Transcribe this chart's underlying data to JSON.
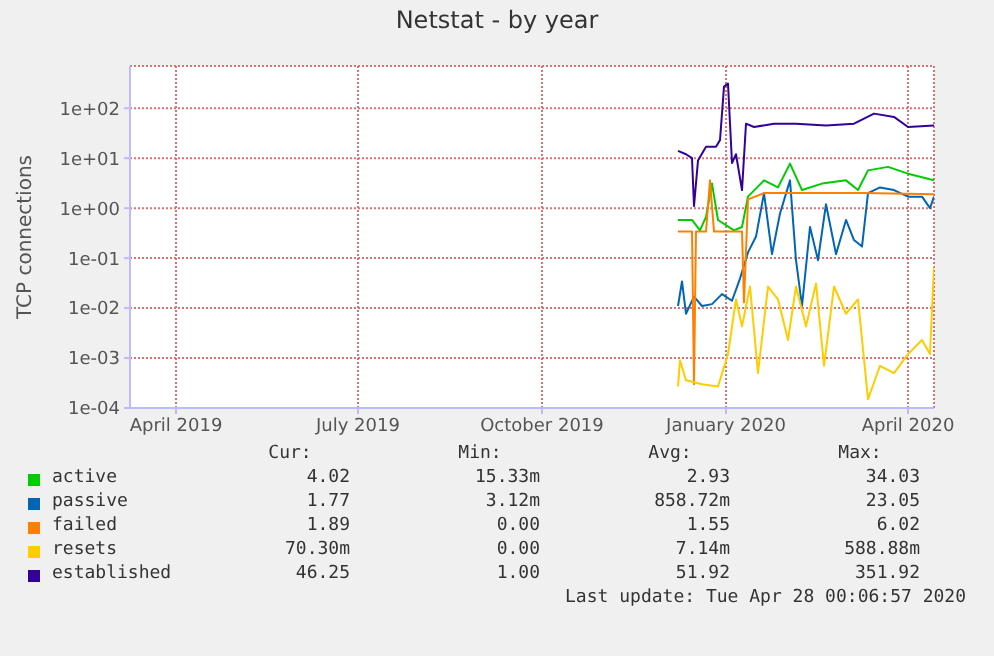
{
  "chart_data": {
    "type": "line",
    "title": "Netstat - by year",
    "ylabel": "TCP connections",
    "log": "y",
    "grid": true,
    "legend": "bottom",
    "marker": "none",
    "line_style": "solid",
    "xlim": [
      "2019-03-09",
      "2020-04-14"
    ],
    "xticks": [
      {
        "value": "2019-04-01",
        "label": "April 2019"
      },
      {
        "value": "2019-07-01",
        "label": "July 2019"
      },
      {
        "value": "2019-10-01",
        "label": "October 2019"
      },
      {
        "value": "2020-01-01",
        "label": "January 2020"
      },
      {
        "value": "2020-04-01",
        "label": "April 2020"
      }
    ],
    "ylim": [
      0.0001,
      700
    ],
    "yticks": [
      {
        "value": 0.0001,
        "label": "1e-04"
      },
      {
        "value": 0.001,
        "label": "1e-03"
      },
      {
        "value": 0.01,
        "label": "1e-02"
      },
      {
        "value": 0.1,
        "label": "1e-01"
      },
      {
        "value": 1,
        "label": "1e+00"
      },
      {
        "value": 10,
        "label": "1e+01"
      },
      {
        "value": 100,
        "label": "1e+02"
      }
    ],
    "series": [
      {
        "name": "active",
        "color": "#00cc00",
        "x": [
          "2019-12-08",
          "2019-12-15",
          "2019-12-19",
          "2019-12-22",
          "2019-12-25",
          "2019-12-28",
          "2020-01-05",
          "2020-01-09",
          "2020-01-12",
          "2020-01-20",
          "2020-01-27",
          "2020-02-02",
          "2020-02-08",
          "2020-02-18",
          "2020-03-01",
          "2020-03-07",
          "2020-03-12",
          "2020-03-22",
          "2020-04-01",
          "2020-04-14"
        ],
        "values": [
          0.58,
          0.58,
          0.36,
          0.67,
          3.1,
          0.58,
          0.36,
          0.42,
          1.7,
          3.6,
          2.6,
          7.8,
          2.3,
          3.1,
          3.6,
          2.3,
          5.7,
          6.7,
          4.9,
          3.6
        ]
      },
      {
        "name": "passive",
        "color": "#0066b3",
        "x": [
          "2019-12-08",
          "2019-12-10",
          "2019-12-12",
          "2019-12-16",
          "2019-12-20",
          "2019-12-25",
          "2019-12-30",
          "2020-01-04",
          "2020-01-08",
          "2020-01-12",
          "2020-01-16",
          "2020-01-20",
          "2020-01-24",
          "2020-01-28",
          "2020-02-02",
          "2020-02-05",
          "2020-02-08",
          "2020-02-12",
          "2020-02-16",
          "2020-02-20",
          "2020-02-25",
          "2020-03-01",
          "2020-03-05",
          "2020-03-09",
          "2020-03-12",
          "2020-03-18",
          "2020-03-25",
          "2020-04-01",
          "2020-04-08",
          "2020-04-12",
          "2020-04-14"
        ],
        "values": [
          0.011,
          0.034,
          0.0077,
          0.017,
          0.011,
          0.012,
          0.019,
          0.014,
          0.039,
          0.13,
          0.27,
          2,
          0.12,
          0.78,
          3.6,
          0.091,
          0.011,
          0.42,
          0.091,
          1.2,
          0.12,
          0.58,
          0.23,
          0.17,
          2,
          2.6,
          2.3,
          1.7,
          1.7,
          1,
          1.7
        ]
      },
      {
        "name": "failed",
        "color": "#ff8000",
        "x": [
          "2019-12-08",
          "2019-12-15",
          "2019-12-16",
          "2019-12-17",
          "2019-12-22",
          "2019-12-24",
          "2019-12-26",
          "2020-01-09",
          "2020-01-10",
          "2020-01-12",
          "2020-01-20",
          "2020-02-10",
          "2020-03-10",
          "2020-04-14"
        ],
        "values": [
          0.34,
          0.34,
          0.0003,
          0.34,
          0.34,
          3.6,
          0.34,
          0.34,
          0.013,
          1.5,
          2,
          2,
          2,
          1.9
        ]
      },
      {
        "name": "resets",
        "color": "#ffcc00",
        "x": [
          "2019-12-08",
          "2019-12-09",
          "2019-12-12",
          "2019-12-20",
          "2019-12-28",
          "2020-01-02",
          "2020-01-06",
          "2020-01-09",
          "2020-01-13",
          "2020-01-17",
          "2020-01-22",
          "2020-01-27",
          "2020-02-01",
          "2020-02-05",
          "2020-02-10",
          "2020-02-15",
          "2020-02-19",
          "2020-02-24",
          "2020-03-01",
          "2020-03-07",
          "2020-03-12",
          "2020-03-18",
          "2020-03-25",
          "2020-04-01",
          "2020-04-08",
          "2020-04-12",
          "2020-04-14"
        ],
        "values": [
          0.00027,
          0.0009,
          0.00036,
          0.0003,
          0.00027,
          0.0012,
          0.015,
          0.0043,
          0.027,
          0.0005,
          0.027,
          0.015,
          0.0023,
          0.027,
          0.0043,
          0.031,
          0.0007,
          0.027,
          0.0077,
          0.015,
          0.00015,
          0.0007,
          0.0005,
          0.0012,
          0.0023,
          0.0012,
          0.068
        ]
      },
      {
        "name": "established",
        "color": "#330099",
        "x": [
          "2019-12-08",
          "2019-12-12",
          "2019-12-15",
          "2019-12-16",
          "2019-12-18",
          "2019-12-22",
          "2019-12-27",
          "2019-12-29",
          "2019-12-31",
          "2020-01-02",
          "2020-01-04",
          "2020-01-06",
          "2020-01-09",
          "2020-01-11",
          "2020-01-15",
          "2020-01-25",
          "2020-02-05",
          "2020-02-20",
          "2020-03-05",
          "2020-03-15",
          "2020-03-25",
          "2020-04-01",
          "2020-04-14"
        ],
        "values": [
          14,
          12,
          10,
          1.1,
          9,
          17,
          17,
          23,
          270,
          310,
          8,
          12,
          2.3,
          49,
          42,
          49,
          49,
          45,
          49,
          78,
          67,
          42,
          45
        ]
      }
    ],
    "annotations": [
      "Cur:",
      "Min:",
      "Avg:",
      "Max:",
      "4.02",
      "15.33m",
      "2.93",
      "34.03",
      "1.77",
      "3.12m",
      "858.72m",
      "23.05",
      "1.89",
      "0.00",
      "1.55",
      "6.02",
      "70.30m",
      "0.00",
      "7.14m",
      "588.88m",
      "46.25",
      "1.00",
      "51.92",
      "351.92",
      "Last update: Tue Apr 28 00:06:57 2020"
    ]
  }
}
